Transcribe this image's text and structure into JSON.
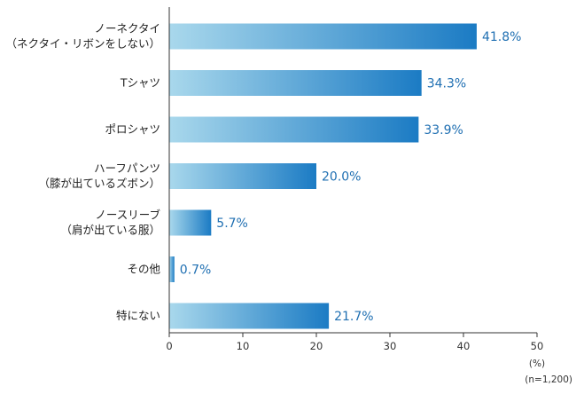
{
  "chart_data": {
    "type": "bar",
    "orientation": "horizontal",
    "categories": [
      [
        "ノーネクタイ",
        "（ネクタイ・リボンをしない）"
      ],
      [
        "Tシャツ"
      ],
      [
        "ポロシャツ"
      ],
      [
        "ハーフパンツ",
        "（膝が出ているズボン）"
      ],
      [
        "ノースリーブ",
        "（肩が出ている服）"
      ],
      [
        "その他"
      ],
      [
        "特にない"
      ]
    ],
    "values": [
      41.8,
      34.3,
      33.9,
      20.0,
      5.7,
      0.7,
      21.7
    ],
    "value_labels": [
      "41.8%",
      "34.3%",
      "33.9%",
      "20.0%",
      "5.7%",
      "0.7%",
      "21.7%"
    ],
    "xlim": [
      0,
      50
    ],
    "xticks": [
      0,
      10,
      20,
      30,
      40,
      50
    ],
    "x_unit": "(%)",
    "sample_note": "(n=1,200)",
    "grid": false,
    "colors": {
      "bar_start": "#a9d8ec",
      "bar_end": "#1b7bc4",
      "value_text": "#1f6fb2",
      "axis": "#333333"
    }
  }
}
